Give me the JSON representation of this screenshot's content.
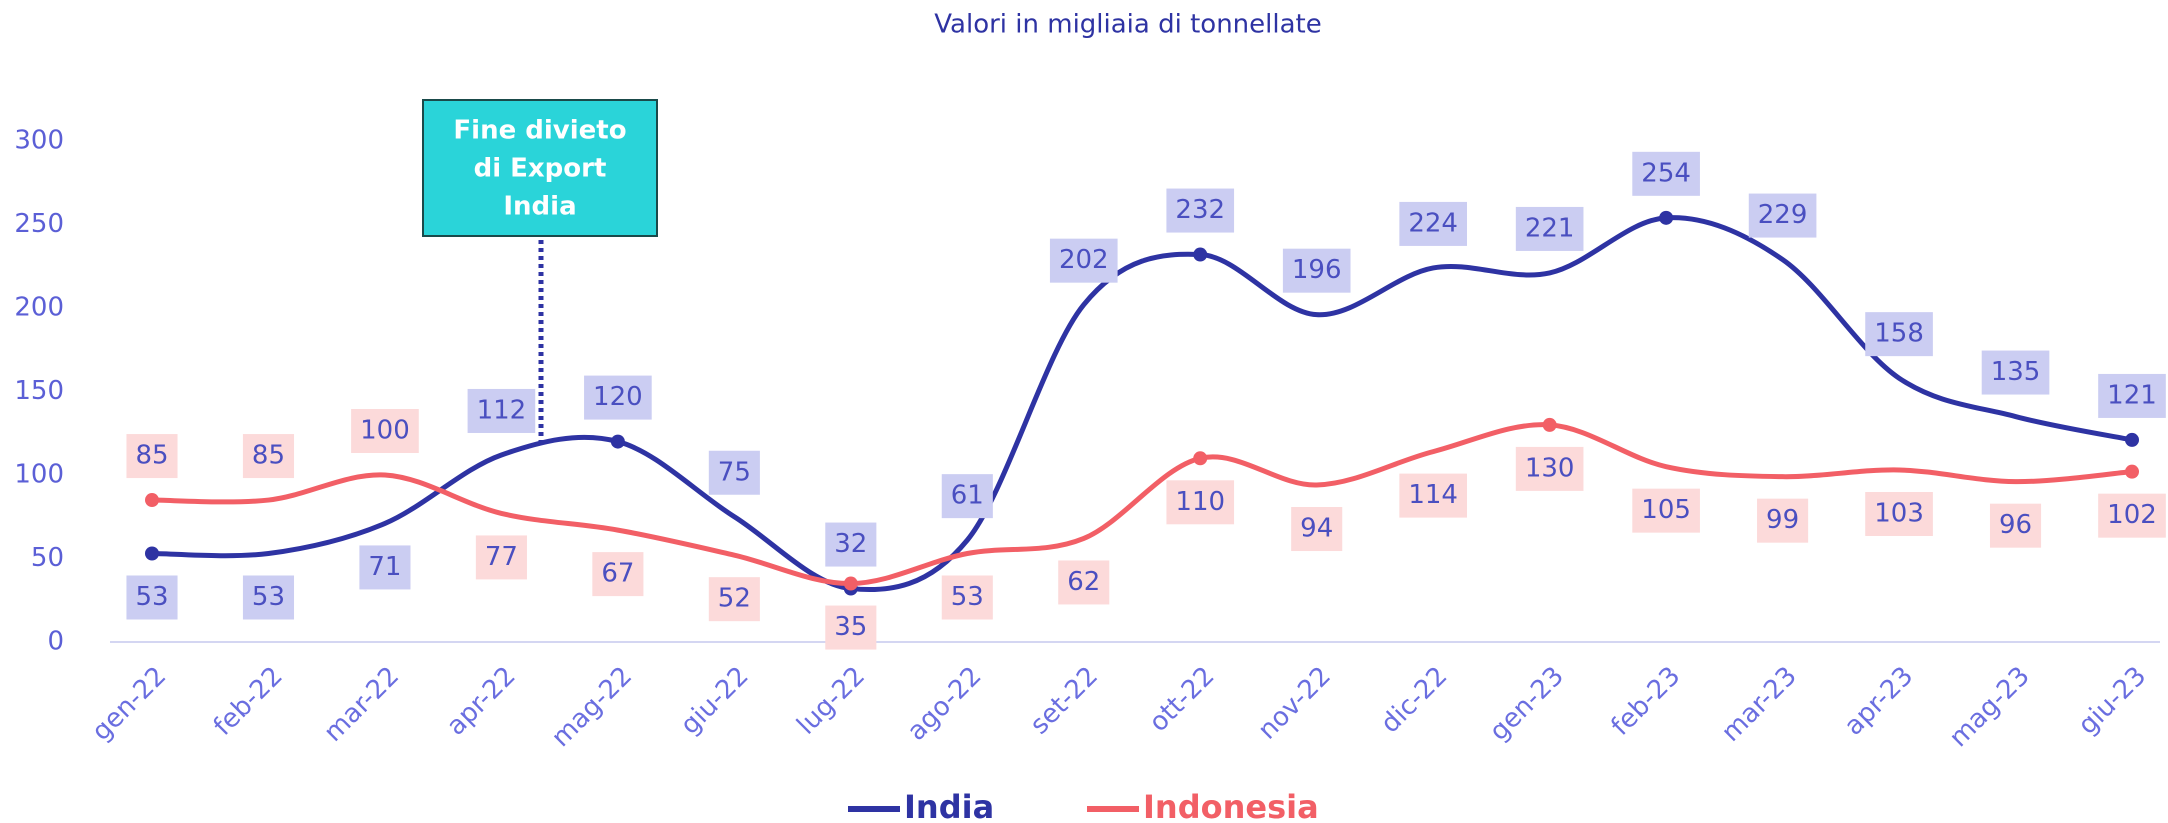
{
  "chart_data": {
    "type": "line",
    "title": "Valori in migliaia di tonnellate",
    "categories": [
      "gen-22",
      "feb-22",
      "mar-22",
      "apr-22",
      "mag-22",
      "giu-22",
      "lug-22",
      "ago-22",
      "set-22",
      "ott-22",
      "nov-22",
      "dic-22",
      "gen-23",
      "feb-23",
      "mar-23",
      "apr-23",
      "mag-23",
      "giu-23"
    ],
    "series": [
      {
        "name": "India",
        "color": "#2e33a3",
        "values": [
          53,
          53,
          71,
          112,
          120,
          75,
          32,
          61,
          202,
          232,
          196,
          224,
          221,
          254,
          229,
          158,
          135,
          121
        ]
      },
      {
        "name": "Indonesia",
        "color": "#f25f66",
        "values": [
          85,
          85,
          100,
          77,
          67,
          52,
          35,
          53,
          62,
          110,
          94,
          114,
          130,
          105,
          99,
          103,
          96,
          102
        ]
      }
    ],
    "ylim": [
      0,
      300
    ],
    "yticks": [
      0,
      50,
      100,
      150,
      200,
      250,
      300
    ],
    "grid": false,
    "legend": "bottom",
    "annotations": [
      {
        "lines": [
          "Fine divieto",
          "di Export",
          "India"
        ]
      }
    ]
  }
}
